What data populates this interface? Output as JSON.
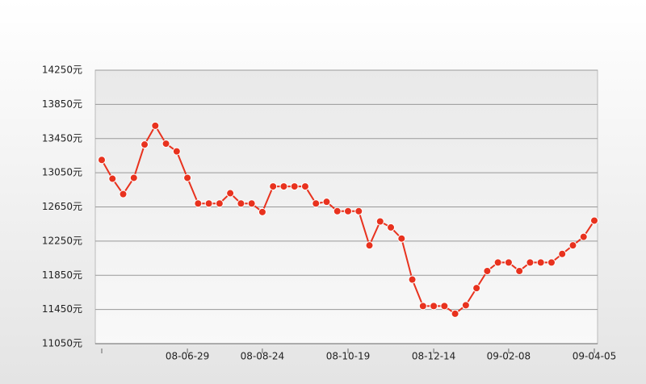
{
  "chart_data": {
    "type": "line",
    "categories": [
      null,
      null,
      null,
      null,
      null,
      null,
      null,
      null,
      "08-06-29",
      null,
      null,
      null,
      null,
      null,
      null,
      "08-08-24",
      null,
      null,
      null,
      null,
      null,
      null,
      null,
      "08-10-19",
      null,
      null,
      null,
      null,
      null,
      null,
      null,
      "08-12-14",
      null,
      null,
      null,
      null,
      null,
      null,
      "09-02-08",
      null,
      null,
      null,
      null,
      null,
      null,
      null,
      "09-04-05"
    ],
    "series": [
      {
        "color": "#e8321e",
        "values": [
          13200,
          12980,
          12800,
          12990,
          13380,
          13600,
          13390,
          13300,
          12990,
          12690,
          12690,
          12690,
          12810,
          12690,
          12690,
          12590,
          12890,
          12890,
          12890,
          12890,
          12690,
          12710,
          12600,
          12600,
          12600,
          12200,
          12480,
          12410,
          12280,
          11800,
          11490,
          11490,
          11490,
          11400,
          11500,
          11700,
          11900,
          12000,
          12000,
          11900,
          12000,
          12000,
          12000,
          12100,
          12200,
          12300,
          12490
        ]
      }
    ],
    "ylim": [
      11050,
      14250
    ],
    "yticks": [
      {
        "value": 11050,
        "label": "11050元"
      },
      {
        "value": 11450,
        "label": "11450元"
      },
      {
        "value": 11850,
        "label": "11850元"
      },
      {
        "value": 12250,
        "label": "12250元"
      },
      {
        "value": 12650,
        "label": "12650元"
      },
      {
        "value": 13050,
        "label": "13050元"
      },
      {
        "value": 13450,
        "label": "13450元"
      },
      {
        "value": 13850,
        "label": "13850元"
      },
      {
        "value": 14250,
        "label": "14250元"
      }
    ],
    "grid": true
  }
}
